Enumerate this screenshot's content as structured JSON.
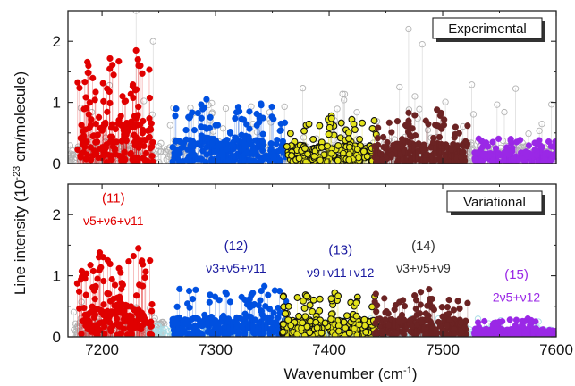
{
  "chart_data": {
    "type": "scatter",
    "xlabel": "Wavenumber (cm",
    "xlabel_sup": "-1",
    "xlabel_end": ")",
    "ylabel": "Line intensity (10",
    "ylabel_sup": "-23",
    "ylabel_end": " cm/molecule)",
    "xlim": [
      7170,
      7600
    ],
    "ylim": [
      0,
      2.5
    ],
    "x_ticks": [
      "7200",
      "7300",
      "7400",
      "7500",
      "7600"
    ],
    "y_ticks": [
      "0",
      "1",
      "2"
    ],
    "panels": [
      {
        "box_label": "Experimental",
        "band_labels": [],
        "series": [
          {
            "color": "#b3b3b3",
            "marker": "open-circle",
            "x_range": [
              7170,
              7600
            ],
            "peak_lines": [
              [
                7230,
                2.5
              ],
              [
                7245,
                2.0
              ],
              [
                7470,
                2.2
              ],
              [
                7482,
                1.95
              ],
              [
                7462,
                1.25
              ]
            ],
            "base_max": 0.3,
            "max": 1.3
          },
          {
            "color": "#e00000",
            "marker": "filled-circle",
            "x_range": [
              7178,
              7245
            ],
            "max": 1.85,
            "peaks": [
              [
                7188,
                1.6
              ],
              [
                7207,
                1.72
              ],
              [
                7230,
                1.85
              ],
              [
                7218,
                1.1
              ]
            ]
          },
          {
            "color": "#0050e0",
            "marker": "filled-circle",
            "x_range": [
              7262,
              7362
            ],
            "max": 1.05,
            "peaks": [
              [
                7292,
                1.05
              ],
              [
                7320,
                0.92
              ],
              [
                7340,
                0.98
              ]
            ]
          },
          {
            "color": "#e3e31a",
            "marker": "filled-circle-black-edge",
            "x_range": [
              7362,
              7442
            ],
            "max": 0.8,
            "peaks": [
              [
                7402,
                0.78
              ],
              [
                7420,
                0.72
              ]
            ]
          },
          {
            "color": "#6b2323",
            "marker": "filled-circle",
            "x_range": [
              7440,
              7522
            ],
            "max": 0.9,
            "peaks": [
              [
                7495,
                0.88
              ],
              [
                7470,
                0.7
              ]
            ]
          },
          {
            "color": "#9a28e6",
            "marker": "filled-circle",
            "x_range": [
              7528,
              7600
            ],
            "max": 0.45,
            "peaks": [
              [
                7560,
                0.4
              ],
              [
                7585,
                0.38
              ]
            ]
          }
        ]
      },
      {
        "box_label": "Variational",
        "band_labels": [
          {
            "id": "(11)",
            "formula": "ν5+ν6+ν11",
            "color": "#e00000",
            "x": 7210,
            "y_id": 2.2,
            "y_formula": 1.83
          },
          {
            "id": "(12)",
            "formula": "ν3+ν5+ν11",
            "color": "#1a1aa0",
            "x": 7318,
            "y_id": 1.42,
            "y_formula": 1.05
          },
          {
            "id": "(13)",
            "formula": "ν9+ν11+ν12",
            "color": "#1a1aa0",
            "x": 7410,
            "y_id": 1.35,
            "y_formula": 0.98
          },
          {
            "id": "(14)",
            "formula": "ν3+ν5+ν9",
            "color": "#333333",
            "x": 7483,
            "y_id": 1.42,
            "y_formula": 1.05
          },
          {
            "id": "(15)",
            "formula": "2ν5+ν12",
            "color": "#9a28e6",
            "x": 7565,
            "y_id": 0.95,
            "y_formula": 0.58
          }
        ],
        "series": [
          {
            "color": "#b3b3b3",
            "marker": "open-circle",
            "x_range": [
              7175,
              7255
            ],
            "base_max": 0.25,
            "max": 0.6
          },
          {
            "color": "#a8dde6",
            "marker": "open-circle",
            "x_range": [
              7240,
              7600
            ],
            "base_max": 0.12,
            "max": 0.3
          },
          {
            "color": "#e00000",
            "marker": "filled-circle",
            "x_range": [
              7178,
              7245
            ],
            "max": 1.45,
            "peaks": [
              [
                7198,
                1.38
              ],
              [
                7232,
                1.45
              ],
              [
                7215,
                1.12
              ]
            ]
          },
          {
            "color": "#0050e0",
            "marker": "filled-circle",
            "x_range": [
              7262,
              7362
            ],
            "max": 0.85,
            "peaks": [
              [
                7343,
                0.83
              ],
              [
                7330,
                0.62
              ]
            ]
          },
          {
            "color": "#e3e31a",
            "marker": "filled-circle-black-edge",
            "x_range": [
              7358,
              7442
            ],
            "max": 0.75,
            "peaks": [
              [
                7405,
                0.72
              ],
              [
                7425,
                0.65
              ]
            ]
          },
          {
            "color": "#6b2323",
            "marker": "filled-circle",
            "x_range": [
              7440,
              7522
            ],
            "max": 0.8,
            "peaks": [
              [
                7488,
                0.78
              ],
              [
                7465,
                0.6
              ]
            ]
          },
          {
            "color": "#9a28e6",
            "marker": "filled-circle",
            "x_range": [
              7528,
              7600
            ],
            "max": 0.32,
            "peaks": [
              [
                7575,
                0.3
              ]
            ]
          }
        ]
      }
    ]
  }
}
